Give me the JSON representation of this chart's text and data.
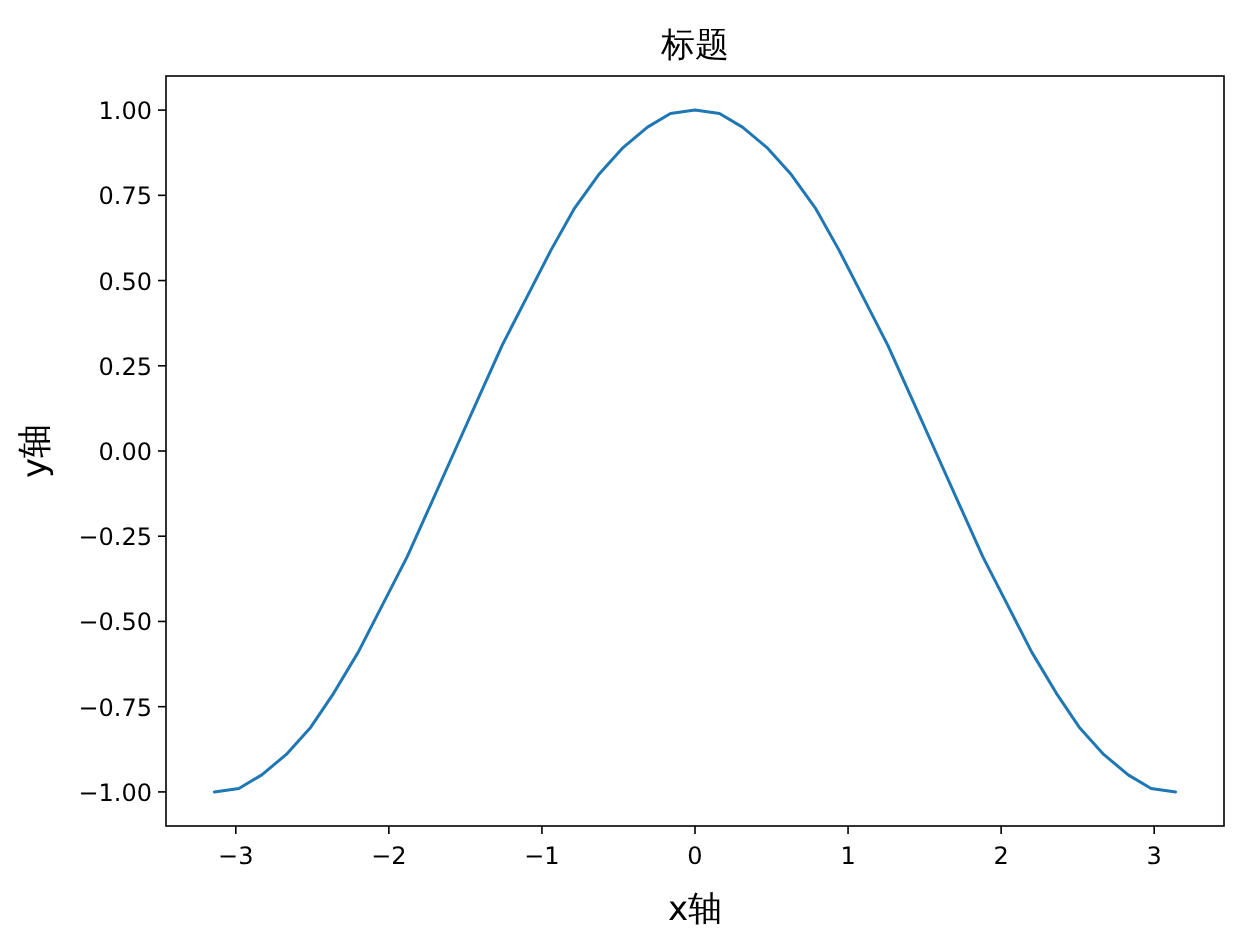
{
  "chart_data": {
    "type": "line",
    "title": "标题",
    "xlabel": "x轴",
    "ylabel": "y轴",
    "x": [
      -3.14,
      -2.98,
      -2.83,
      -2.67,
      -2.51,
      -2.36,
      -2.2,
      -2.04,
      -1.88,
      -1.73,
      -1.57,
      -1.41,
      -1.26,
      -1.1,
      -0.94,
      -0.79,
      -0.63,
      -0.47,
      -0.31,
      -0.16,
      0,
      0.16,
      0.31,
      0.47,
      0.63,
      0.79,
      0.94,
      1.1,
      1.26,
      1.41,
      1.57,
      1.73,
      1.88,
      2.04,
      2.2,
      2.36,
      2.51,
      2.67,
      2.83,
      2.98,
      3.14
    ],
    "series": [
      {
        "color": "#1f77b4",
        "values": [
          -1,
          -0.99,
          -0.95,
          -0.89,
          -0.81,
          -0.71,
          -0.59,
          -0.45,
          -0.31,
          -0.16,
          0,
          0.16,
          0.31,
          0.45,
          0.59,
          0.71,
          0.81,
          0.89,
          0.95,
          0.99,
          1,
          0.99,
          0.95,
          0.89,
          0.81,
          0.71,
          0.59,
          0.45,
          0.31,
          0.16,
          0,
          -0.16,
          -0.31,
          -0.45,
          -0.59,
          -0.71,
          -0.81,
          -0.89,
          -0.95,
          -0.99,
          -1
        ]
      }
    ],
    "xlim": [
      -3.456,
      3.456
    ],
    "ylim": [
      -1.1,
      1.1
    ],
    "xticks": [
      {
        "value": -3,
        "label": "−3"
      },
      {
        "value": -2,
        "label": "−2"
      },
      {
        "value": -1,
        "label": "−1"
      },
      {
        "value": 0,
        "label": "0"
      },
      {
        "value": 1,
        "label": "1"
      },
      {
        "value": 2,
        "label": "2"
      },
      {
        "value": 3,
        "label": "3"
      }
    ],
    "yticks": [
      {
        "value": -1,
        "label": "−1.00"
      },
      {
        "value": -0.75,
        "label": "−0.75"
      },
      {
        "value": -0.5,
        "label": "−0.50"
      },
      {
        "value": -0.25,
        "label": "−0.25"
      },
      {
        "value": 0,
        "label": "0.00"
      },
      {
        "value": 0.25,
        "label": "0.25"
      },
      {
        "value": 0.5,
        "label": "0.50"
      },
      {
        "value": 0.75,
        "label": "0.75"
      },
      {
        "value": 1,
        "label": "1.00"
      }
    ],
    "grid": false,
    "marker": "none",
    "line_style": "solid"
  }
}
